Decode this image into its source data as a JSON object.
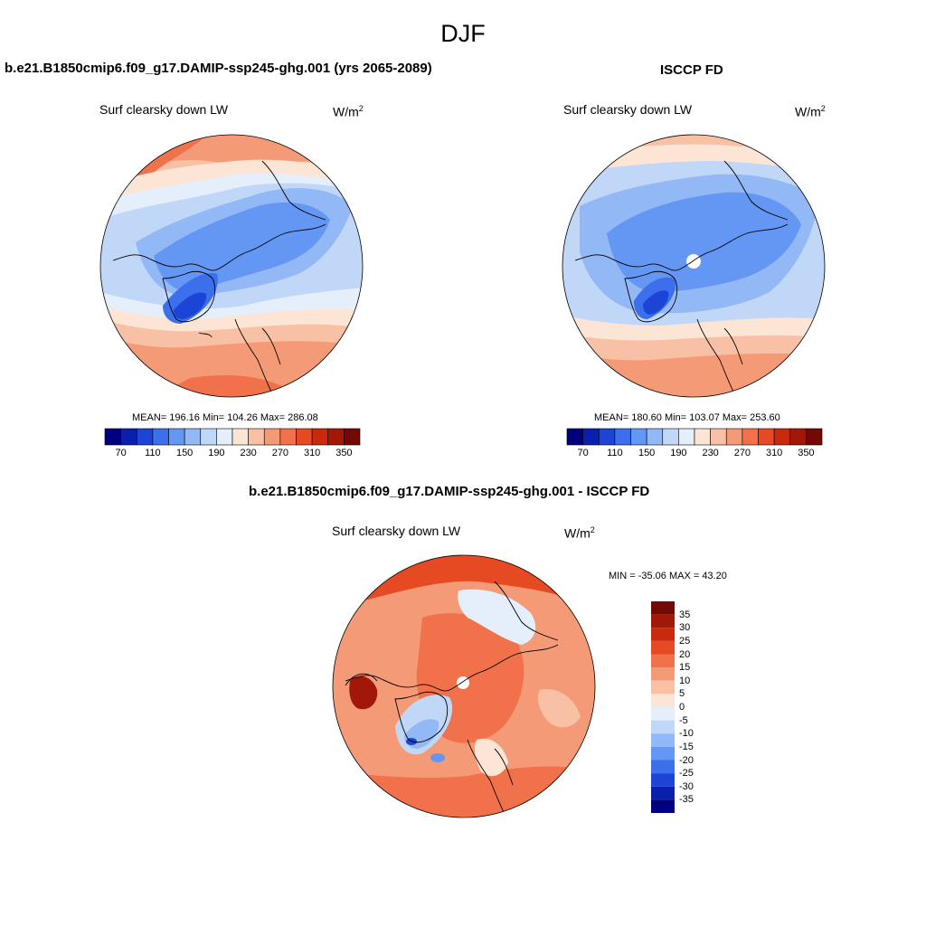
{
  "main_title": "DJF",
  "panels": {
    "left": {
      "title": "b.e21.B1850cmip6.f09_g17.DAMIP-ssp245-ghg.001 (yrs 2065-2089)",
      "variable": "Surf clearsky down LW",
      "units_base": "W/m",
      "units_exp": "2",
      "stats": "MEAN= 196.16  Min= 104.26  Max= 286.08"
    },
    "right": {
      "title": "ISCCP FD",
      "variable": "Surf clearsky down LW",
      "units_base": "W/m",
      "units_exp": "2",
      "stats": "MEAN= 180.60  Min= 103.07  Max= 253.60"
    },
    "diff": {
      "title": "b.e21.B1850cmip6.f09_g17.DAMIP-ssp245-ghg.001 - ISCCP FD",
      "variable": "Surf clearsky down LW",
      "units_base": "W/m",
      "units_exp": "2",
      "stats": "MIN = -35.06 MAX =  43.20"
    }
  },
  "colorbar_abs": {
    "colors": [
      "#00007f",
      "#0a1fae",
      "#1c45d6",
      "#3b6fec",
      "#6496f3",
      "#93b8f6",
      "#c1d7f8",
      "#e5eefb",
      "#fde5d6",
      "#f8c0a5",
      "#f59a77",
      "#f0714a",
      "#e54a22",
      "#c92a0c",
      "#a21808",
      "#730904"
    ],
    "tick_labels": [
      "70",
      "110",
      "150",
      "190",
      "230",
      "270",
      "310",
      "350"
    ]
  },
  "colorbar_diff": {
    "colors": [
      "#00007f",
      "#0a1fae",
      "#1c45d6",
      "#3b6fec",
      "#6496f3",
      "#93b8f6",
      "#c1d7f8",
      "#e5eefb",
      "#fde5d6",
      "#f8c0a5",
      "#f59a77",
      "#f0714a",
      "#e54a22",
      "#c92a0c",
      "#a21808",
      "#730904"
    ],
    "tick_labels": [
      "35",
      "30",
      "25",
      "20",
      "15",
      "10",
      "5",
      "0",
      "-5",
      "-10",
      "-15",
      "-20",
      "-25",
      "-30",
      "-35"
    ]
  }
}
